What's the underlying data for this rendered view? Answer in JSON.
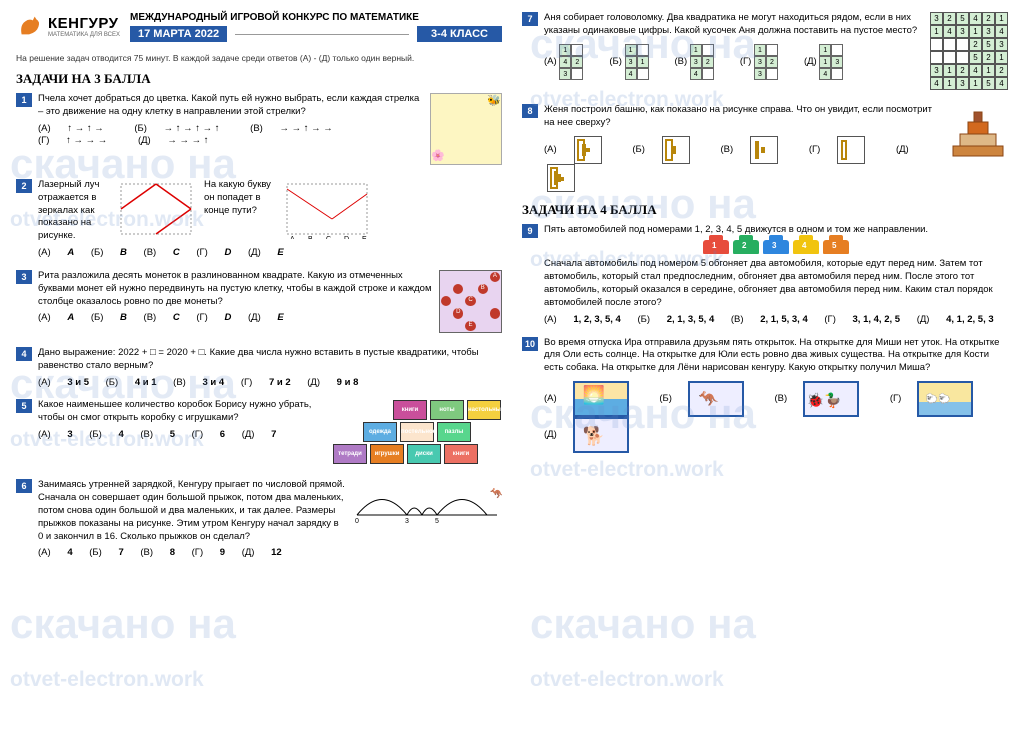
{
  "logo": {
    "name": "КЕНГУРУ",
    "sub": "МАТЕМАТИКА ДЛЯ ВСЕХ"
  },
  "title": "МЕЖДУНАРОДНЫЙ ИГРОВОЙ КОНКУРС ПО МАТЕМАТИКЕ",
  "date": "17 МАРТА 2022",
  "class": "3-4 КЛАСС",
  "instruction": "На решение задач отводится 75 минут. В каждой задаче среди ответов (А) - (Д) только один верный.",
  "section3": "ЗАДАЧИ НА 3 БАЛЛА",
  "section4": "ЗАДАЧИ НА 4 БАЛЛА",
  "watermark_line1": "скачано на",
  "watermark_url": "otvet-electron.work",
  "q1": {
    "text": "Пчела хочет добраться до цветка. Какой путь ей нужно выбрать, если каждая стрелка – это движение на одну клетку в направлении этой стрелки?",
    "answers": [
      "↑ → ↑ →",
      "→ ↑ → ↑ → ↑",
      "→ → ↑ → →",
      "↑ → → →",
      "→ → → ↑"
    ],
    "labels": [
      "(А)",
      "(Б)",
      "(В)",
      "(Г)",
      "(Д)"
    ]
  },
  "q2": {
    "text": "Лазерный луч отражается в зеркалах как показано на рисунке.",
    "text2": "На какую букву он попадет в конце пути?",
    "answers": [
      "A",
      "B",
      "C",
      "D",
      "E"
    ]
  },
  "q3": {
    "text": "Рита разложила десять монеток в разлинованном квадрате. Какую из отмеченных буквами монет ей нужно передвинуть на пустую клетку, чтобы в каждой строке и каждом столбце оказалось ровно по две монеты?",
    "answers": [
      "A",
      "B",
      "C",
      "D",
      "E"
    ]
  },
  "q4": {
    "text": "Дано выражение: 2022 + □ = 2020 + □. Какие два числа нужно вставить в пустые квадратики, чтобы равенство стало верным?",
    "answers": [
      "3 и 5",
      "4 и 1",
      "3 и 4",
      "7 и 2",
      "9 и 8"
    ]
  },
  "q5": {
    "text": "Какое наименьшее количество коробок Борису нужно убрать, чтобы он смог открыть коробку с игрушками?",
    "answers": [
      "3",
      "4",
      "5",
      "6",
      "7"
    ],
    "boxes": [
      "книги",
      "ноты",
      "настольные игры",
      "одежда",
      "постельное бельё",
      "пазлы",
      "тетради",
      "игрушки",
      "диски",
      "книги"
    ],
    "box_colors": [
      "#c94f9b",
      "#7fc97f",
      "#f4d03f",
      "#5dade2",
      "#fce5cd",
      "#58d68d",
      "#af7ac5",
      "#e67e22",
      "#48c9b0",
      "#ec7063"
    ]
  },
  "q6": {
    "text": "Занимаясь утренней зарядкой, Кенгуру прыгает по числовой прямой. Сначала он совершает один большой прыжок, потом два маленьких, потом снова один большой и два маленьких, и так далее. Размеры прыжков показаны на рисунке. Этим утром Кенгуру начал зарядку в 0 и закончил в 16. Сколько прыжков он сделал?",
    "answers": [
      "4",
      "7",
      "8",
      "9",
      "12"
    ]
  },
  "q7": {
    "text": "Аня собирает головоломку. Два квадратика не могут находиться рядом, если в них указаны одинаковые цифры. Какой кусочек Аня должна поставить на пустое место?",
    "grid": [
      [
        "3",
        "2",
        "5",
        "4",
        "2",
        "1"
      ],
      [
        "1",
        "4",
        "3",
        "1",
        "3",
        "4"
      ],
      [
        "",
        "",
        "",
        "2",
        "5",
        "3"
      ],
      [
        "",
        "",
        "",
        "5",
        "2",
        "1"
      ],
      [
        "3",
        "1",
        "2",
        "4",
        "1",
        "2"
      ],
      [
        "4",
        "1",
        "3",
        "1",
        "5",
        "4"
      ]
    ],
    "pieces": {
      "А": [
        [
          "1",
          ""
        ],
        [
          "4",
          "2"
        ],
        [
          "3",
          ""
        ]
      ],
      "Б": [
        [
          "1",
          ""
        ],
        [
          "3",
          "1"
        ],
        [
          "4",
          ""
        ]
      ],
      "В": [
        [
          "1",
          ""
        ],
        [
          "3",
          "2"
        ],
        [
          "4",
          ""
        ]
      ],
      "Г": [
        [
          "1",
          ""
        ],
        [
          "3",
          "2"
        ],
        [
          "3",
          ""
        ]
      ],
      "Д": [
        [
          "1",
          ""
        ],
        [
          "1",
          "3"
        ],
        [
          "4",
          ""
        ]
      ]
    }
  },
  "q8": {
    "text": "Женя построил башню, как показано на рисунке справа. Что он увидит, если посмотрит на нее сверху?",
    "labels": [
      "(А)",
      "(Б)",
      "(В)",
      "(Г)",
      "(Д)"
    ]
  },
  "q9": {
    "text": "Пять автомобилей под номерами 1, 2, 3, 4, 5 движутся в одном и том же направлении.",
    "text2": "Сначала автомобиль под номером 5 обгоняет два автомобиля, которые едут перед ним. Затем тот автомобиль, который стал предпоследним, обгоняет два автомобиля перед ним. После этого тот автомобиль, который оказался в середине, обгоняет два автомобиля перед ним. Каким стал порядок автомобилей после этого?",
    "answers": [
      "1, 2, 3, 5, 4",
      "2, 1, 3, 5, 4",
      "2, 1, 5, 3, 4",
      "3, 1, 4, 2, 5",
      "4, 1, 2, 5, 3"
    ],
    "car_colors": [
      "#e74c3c",
      "#27ae60",
      "#2e86de",
      "#f1c40f",
      "#e67e22"
    ]
  },
  "q10": {
    "text": "Во время отпуска Ира отправила друзьям пять открыток. На открытке для Миши нет уток. На открытке для Оли есть солнце. На открытке для Юли есть ровно два живых существа. На открытке для Кости есть собака. На открытке для Лёни нарисован кенгуру. Какую открытку получил Миша?",
    "labels": [
      "(А)",
      "(Б)",
      "(В)",
      "(Г)",
      "(Д)"
    ]
  },
  "answer_labels": [
    "(А)",
    "(Б)",
    "(В)",
    "(Г)",
    "(Д)"
  ]
}
